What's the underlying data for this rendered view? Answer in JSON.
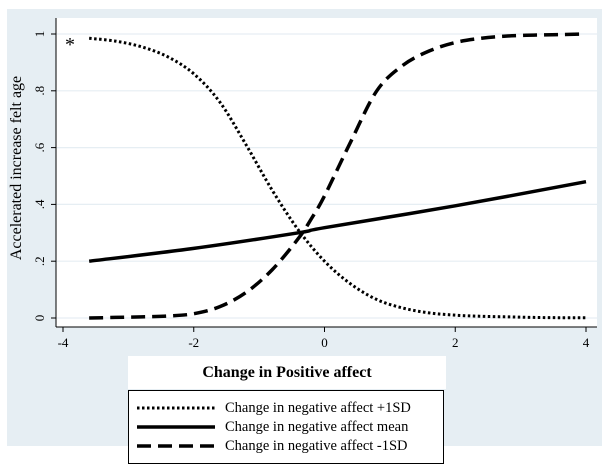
{
  "chart_data": {
    "type": "line",
    "title": "",
    "xlabel": "Change in Positive affect",
    "ylabel": "Accelerated increase felt age",
    "xlim": [
      -4.1,
      4.2
    ],
    "ylim": [
      -0.03,
      1.05
    ],
    "xticks": [
      "-4",
      "-2",
      "0",
      "2",
      "4"
    ],
    "xtick_values": [
      -4,
      -2,
      0,
      2,
      4
    ],
    "yticks": [
      "0",
      ".2",
      ".4",
      ".6",
      ".8",
      "1"
    ],
    "ytick_values": [
      0,
      0.2,
      0.4,
      0.6,
      0.8,
      1
    ],
    "annotation": "*",
    "legend_position": "bottom",
    "series": [
      {
        "name": "Change in negative affect +1SD",
        "style": "dotted",
        "x": [
          -3.6,
          -3.2,
          -2.8,
          -2.4,
          -2.0,
          -1.6,
          -1.2,
          -0.8,
          -0.4,
          0.0,
          0.4,
          0.8,
          1.2,
          1.6,
          2.0,
          2.4,
          2.8,
          3.2,
          3.6,
          4.0
        ],
        "y": [
          0.985,
          0.975,
          0.955,
          0.92,
          0.86,
          0.76,
          0.61,
          0.45,
          0.31,
          0.2,
          0.12,
          0.065,
          0.035,
          0.018,
          0.01,
          0.006,
          0.004,
          0.002,
          0.001,
          0.001
        ]
      },
      {
        "name": "Change in negative affect mean",
        "style": "solid",
        "x": [
          -3.6,
          -2.0,
          -0.4,
          0.0,
          2.0,
          4.0
        ],
        "y": [
          0.2,
          0.245,
          0.3,
          0.318,
          0.395,
          0.48
        ]
      },
      {
        "name": "Change in negative affect -1SD",
        "style": "dashed",
        "x": [
          -3.6,
          -3.2,
          -2.8,
          -2.4,
          -2.0,
          -1.6,
          -1.2,
          -0.8,
          -0.4,
          -0.2,
          0.0,
          0.4,
          0.8,
          1.2,
          1.6,
          2.0,
          2.4,
          2.8,
          3.2,
          3.6,
          4.0
        ],
        "y": [
          0.0,
          0.002,
          0.004,
          0.007,
          0.015,
          0.04,
          0.09,
          0.17,
          0.28,
          0.35,
          0.43,
          0.62,
          0.8,
          0.89,
          0.94,
          0.97,
          0.985,
          0.993,
          0.996,
          0.998,
          1.0
        ]
      }
    ]
  }
}
